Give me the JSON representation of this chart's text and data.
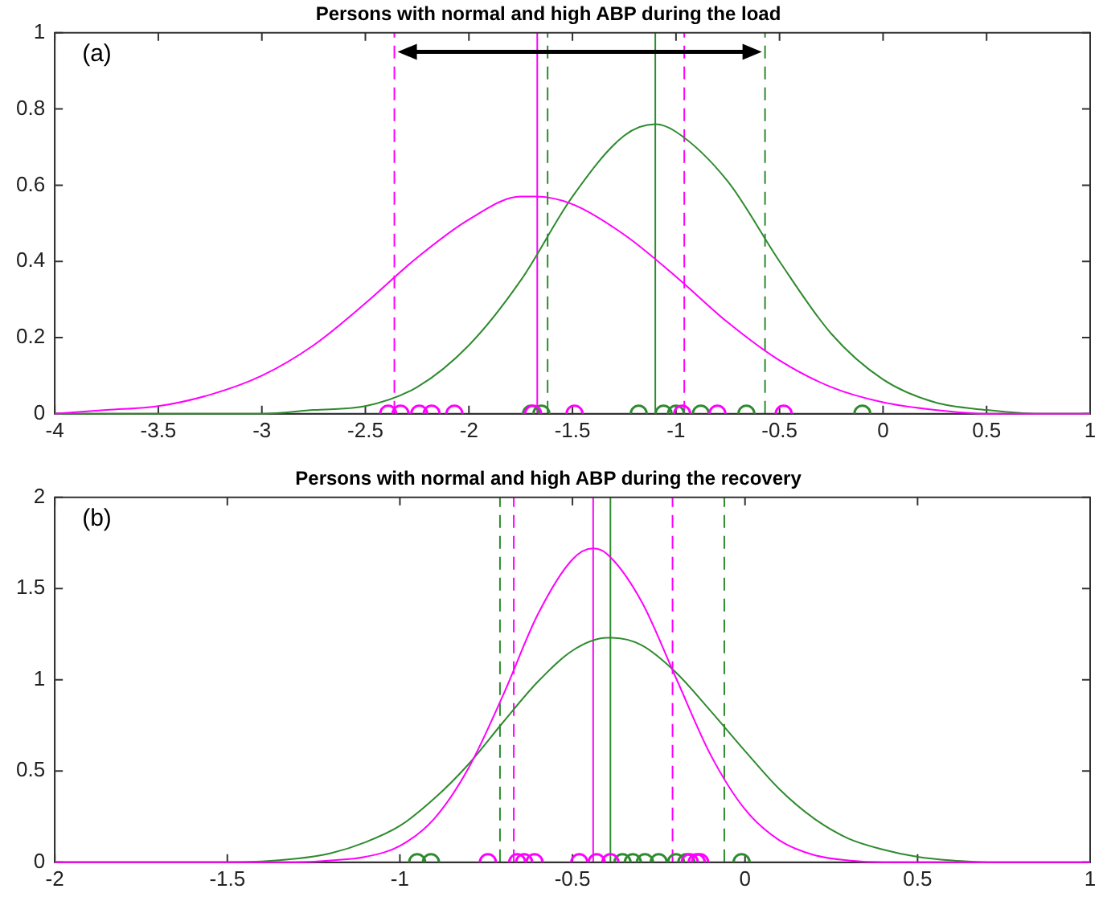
{
  "chart_data": [
    {
      "type": "line",
      "title": "Persons with normal and high ABP during the load",
      "annotations": [
        "(a)"
      ],
      "grid": false,
      "legend": false,
      "xlim": [
        -4,
        1
      ],
      "xticks": [
        -4,
        -3.5,
        -3,
        -2.5,
        -2,
        -1.5,
        -1,
        -0.5,
        0,
        0.5,
        1
      ],
      "ylim": [
        0,
        1
      ],
      "yticks": [
        0,
        0.2,
        0.4,
        0.6,
        0.8,
        1
      ],
      "series": [
        {
          "color": "#ff00ff",
          "marker": "none",
          "x": [
            -4,
            -3.75,
            -3.5,
            -3.25,
            -3,
            -2.75,
            -2.5,
            -2.25,
            -2,
            -1.75,
            -1.68,
            -1.5,
            -1.25,
            -1,
            -0.75,
            -0.5,
            -0.25,
            0,
            0.25,
            0.5,
            0.75,
            1
          ],
          "values": [
            0,
            0.01,
            0.02,
            0.05,
            0.1,
            0.18,
            0.29,
            0.41,
            0.51,
            0.57,
            0.57,
            0.55,
            0.47,
            0.36,
            0.24,
            0.14,
            0.07,
            0.03,
            0.01,
            0,
            0,
            0
          ]
        },
        {
          "color": "#2e8b2e",
          "marker": "none",
          "x": [
            -4,
            -3.5,
            -3,
            -2.75,
            -2.5,
            -2.25,
            -2,
            -1.75,
            -1.5,
            -1.25,
            -1.1,
            -1,
            -0.75,
            -0.5,
            -0.25,
            0,
            0.25,
            0.5,
            0.75,
            1
          ],
          "values": [
            0,
            0,
            0,
            0.01,
            0.02,
            0.07,
            0.18,
            0.35,
            0.57,
            0.73,
            0.76,
            0.74,
            0.61,
            0.4,
            0.21,
            0.09,
            0.03,
            0.01,
            0,
            0
          ]
        },
        {
          "type": "scatter",
          "color": "#ff00ff",
          "marker": "circle",
          "x": [
            -2.39,
            -2.33,
            -2.24,
            -2.18,
            -2.07,
            -1.69,
            -1.49,
            -0.97,
            -0.8,
            -0.48
          ],
          "values": [
            0,
            0,
            0,
            0,
            0,
            0,
            0,
            0,
            0,
            0
          ]
        },
        {
          "type": "scatter",
          "color": "#2e8b2e",
          "marker": "circle",
          "x": [
            -1.7,
            -1.65,
            -1.18,
            -1.06,
            -1.0,
            -0.88,
            -0.66,
            -0.1
          ],
          "values": [
            0,
            0,
            0,
            0,
            0,
            0,
            0,
            0
          ]
        }
      ],
      "ref_lines": [
        {
          "axis": "x",
          "value": -1.67,
          "color": "#ff00ff",
          "line_style": "solid"
        },
        {
          "axis": "x",
          "value": -1.1,
          "color": "#2e8b2e",
          "line_style": "solid"
        },
        {
          "axis": "x",
          "value": -2.36,
          "color": "#ff00ff",
          "line_style": "dashed"
        },
        {
          "axis": "x",
          "value": -0.96,
          "color": "#ff00ff",
          "line_style": "dashed"
        },
        {
          "axis": "x",
          "value": -1.62,
          "color": "#2e8b2e",
          "line_style": "dashed"
        },
        {
          "axis": "x",
          "value": -0.57,
          "color": "#2e8b2e",
          "line_style": "dashed"
        }
      ]
    },
    {
      "type": "line",
      "title": "Persons with normal and high ABP during the recovery",
      "annotations": [
        "(b)"
      ],
      "grid": false,
      "legend": false,
      "xlim": [
        -2,
        1
      ],
      "xticks": [
        -2,
        -1.5,
        -1,
        -0.5,
        0,
        0.5,
        1
      ],
      "ylim": [
        0,
        2
      ],
      "yticks": [
        0,
        0.5,
        1,
        1.5,
        2
      ],
      "series": [
        {
          "color": "#ff00ff",
          "marker": "none",
          "x": [
            -2,
            -1.5,
            -1.3,
            -1.2,
            -1.1,
            -1,
            -0.9,
            -0.8,
            -0.7,
            -0.6,
            -0.5,
            -0.44,
            -0.4,
            -0.3,
            -0.2,
            -0.1,
            0,
            0.1,
            0.2,
            0.3,
            0.4,
            0.5,
            1
          ],
          "values": [
            0,
            0,
            0,
            0.01,
            0.03,
            0.09,
            0.24,
            0.52,
            0.92,
            1.36,
            1.66,
            1.72,
            1.69,
            1.43,
            1.01,
            0.59,
            0.29,
            0.12,
            0.04,
            0.01,
            0,
            0,
            0
          ]
        },
        {
          "color": "#2e8b2e",
          "marker": "none",
          "x": [
            -2,
            -1.5,
            -1.3,
            -1.2,
            -1.1,
            -1,
            -0.9,
            -0.8,
            -0.7,
            -0.6,
            -0.5,
            -0.4,
            -0.386,
            -0.3,
            -0.2,
            -0.1,
            0,
            0.1,
            0.2,
            0.3,
            0.4,
            0.5,
            0.6,
            0.7
          ],
          "values": [
            0,
            0,
            0.02,
            0.05,
            0.11,
            0.2,
            0.35,
            0.54,
            0.77,
            0.99,
            1.16,
            1.23,
            1.23,
            1.19,
            1.04,
            0.83,
            0.61,
            0.4,
            0.24,
            0.13,
            0.07,
            0.03,
            0.01,
            0
          ]
        },
        {
          "type": "scatter",
          "color": "#ff00ff",
          "marker": "circle",
          "x": [
            -0.745,
            -0.66,
            -0.64,
            -0.61,
            -0.48,
            -0.43,
            -0.39,
            -0.16,
            -0.14,
            -0.13
          ],
          "values": [
            0,
            0,
            0,
            0,
            0,
            0,
            0,
            0,
            0,
            0
          ]
        },
        {
          "type": "scatter",
          "color": "#2e8b2e",
          "marker": "circle",
          "x": [
            -0.95,
            -0.91,
            -0.355,
            -0.325,
            -0.29,
            -0.25,
            -0.2,
            -0.17,
            -0.01
          ],
          "values": [
            0,
            0,
            0,
            0,
            0,
            0,
            0,
            0,
            0
          ]
        }
      ],
      "ref_lines": [
        {
          "axis": "x",
          "value": -0.44,
          "color": "#ff00ff",
          "line_style": "solid"
        },
        {
          "axis": "x",
          "value": -0.39,
          "color": "#2e8b2e",
          "line_style": "solid"
        },
        {
          "axis": "x",
          "value": -0.67,
          "color": "#ff00ff",
          "line_style": "dashed"
        },
        {
          "axis": "x",
          "value": -0.21,
          "color": "#ff00ff",
          "line_style": "dashed"
        },
        {
          "axis": "x",
          "value": -0.71,
          "color": "#2e8b2e",
          "line_style": "dashed"
        },
        {
          "axis": "x",
          "value": -0.06,
          "color": "#2e8b2e",
          "line_style": "dashed"
        }
      ]
    }
  ]
}
